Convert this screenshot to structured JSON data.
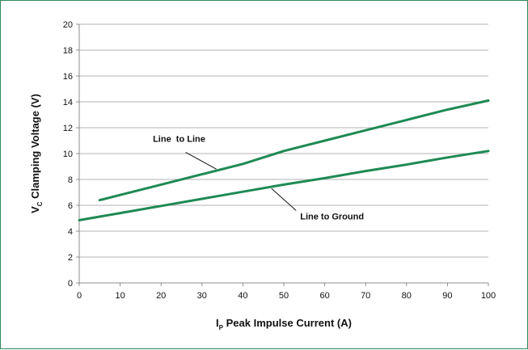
{
  "chart_data": {
    "type": "line",
    "xlabel": {
      "main": "I",
      "sub": "P",
      "rest": " Peak Impulse Current (A)"
    },
    "ylabel": {
      "main": "V",
      "sub": "C",
      "rest": " Clamping Voltage (V)"
    },
    "xlim": [
      0,
      100
    ],
    "ylim": [
      0,
      20
    ],
    "x_ticks": [
      "0",
      "10",
      "20",
      "30",
      "40",
      "50",
      "60",
      "70",
      "80",
      "90",
      "100"
    ],
    "y_ticks": [
      "0",
      "2",
      "4",
      "6",
      "8",
      "10",
      "12",
      "14",
      "16",
      "18",
      "20"
    ],
    "grid": "horizontal",
    "line_color": "#1e8a54",
    "frame_color": "#2f8a5a",
    "series": [
      {
        "name": "Line  to Line",
        "x": [
          5,
          10,
          20,
          30,
          40,
          50,
          60,
          70,
          80,
          90,
          100
        ],
        "y": [
          6.4,
          6.8,
          7.6,
          8.4,
          9.2,
          10.2,
          11.0,
          11.8,
          12.6,
          13.4,
          14.1
        ]
      },
      {
        "name": "Line to Ground",
        "x": [
          0,
          10,
          20,
          30,
          40,
          50,
          60,
          70,
          80,
          90,
          100
        ],
        "y": [
          4.85,
          5.4,
          5.95,
          6.5,
          7.05,
          7.6,
          8.1,
          8.65,
          9.15,
          9.7,
          10.2
        ]
      }
    ]
  }
}
